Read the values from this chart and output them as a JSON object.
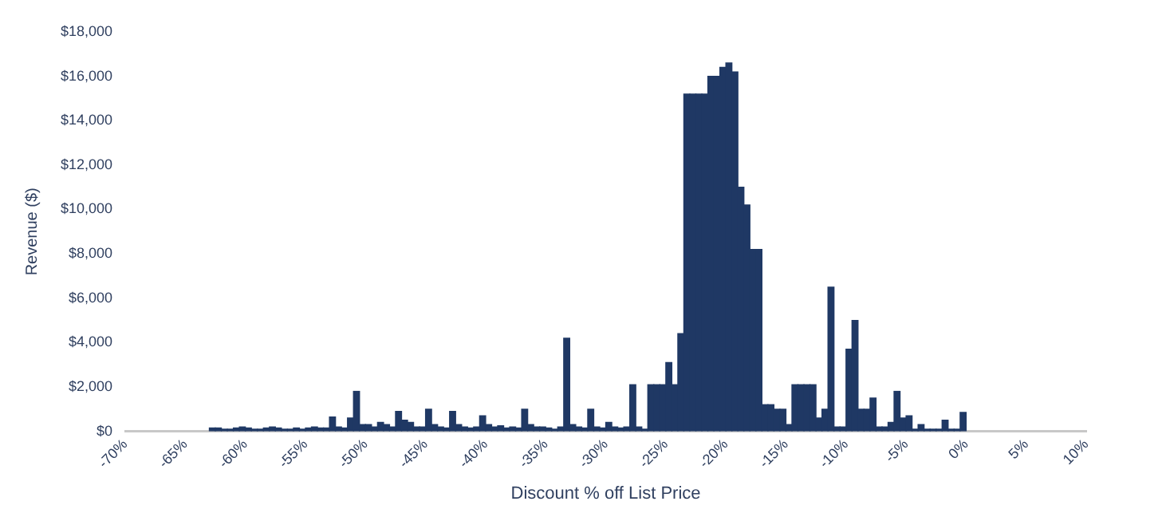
{
  "chart_data": {
    "type": "histogram",
    "xlabel": "Discount % off List Price",
    "ylabel": "Revenue ($)",
    "color": "#1f3864",
    "bins": [
      -63,
      -62.5,
      -62,
      -61.5,
      -61,
      -60.5,
      -60,
      -59.5,
      -59,
      -58.5,
      -58,
      -57.5,
      -57,
      -56.5,
      -56,
      -55.5,
      -55,
      -54.5,
      -54,
      -53.5,
      -53,
      -52.5,
      -52,
      -51.5,
      -51,
      -50.5,
      -50,
      -49.5,
      -49,
      -48.5,
      -48,
      -47.5,
      -47,
      -46.5,
      -46,
      -45.5,
      -45,
      -44.5,
      -44,
      -43.5,
      -43,
      -42.5,
      -42,
      -41.5,
      -41,
      -40.5,
      -40,
      -39.5,
      -39,
      -38.5,
      -38,
      -37.5,
      -37,
      -36.5,
      -36,
      -35.5,
      -35,
      -34.5,
      -34,
      -33.5,
      -33,
      -32.5,
      -32,
      -31.5,
      -31,
      -30.5,
      -30,
      -29.5,
      -29,
      -28.5,
      -28,
      -27.5,
      -27,
      -26.5,
      -26,
      -25.5,
      -25,
      -24.5,
      -24,
      -23.5,
      -23,
      -22.5,
      -22,
      -21.5,
      -21,
      -20.5,
      -20,
      -19.5,
      -19,
      -18.5,
      -18,
      -17.5,
      -17,
      -16.5,
      -16,
      -15.5,
      -15,
      -14.5,
      -14,
      -13.5,
      -13,
      -12.5,
      -12,
      -11.5,
      -11,
      -10.5,
      -10,
      -9.5,
      -9,
      -8.5,
      -8,
      -7.5,
      -7,
      -6.5,
      -6,
      -5.5,
      -5,
      -4.5,
      -4,
      -3.5,
      -3,
      -2.5,
      -2,
      -1.5,
      -1,
      -0.5,
      0
    ],
    "values": [
      150,
      150,
      100,
      100,
      150,
      200,
      150,
      100,
      100,
      150,
      200,
      150,
      100,
      100,
      150,
      100,
      150,
      200,
      150,
      150,
      650,
      200,
      150,
      600,
      1800,
      300,
      300,
      200,
      400,
      300,
      200,
      900,
      500,
      400,
      200,
      200,
      1000,
      300,
      200,
      150,
      900,
      300,
      200,
      150,
      200,
      700,
      300,
      200,
      250,
      150,
      200,
      150,
      1000,
      300,
      200,
      200,
      150,
      100,
      200,
      4200,
      300,
      200,
      150,
      1000,
      200,
      150,
      400,
      200,
      150,
      200,
      2100,
      200,
      100,
      2100,
      2100,
      2100,
      3100,
      2100,
      4400,
      15200,
      15200,
      15200,
      15200,
      16000,
      16000,
      16400,
      16600,
      16200,
      11000,
      10200,
      8200,
      8200,
      1200,
      1200,
      1000,
      1000,
      300,
      2100,
      2100,
      2100,
      2100,
      600,
      1000,
      6500,
      200,
      200,
      3700,
      5000,
      1000,
      1000,
      1500,
      200,
      200,
      400,
      1800,
      600,
      700,
      100,
      300,
      100,
      100,
      100,
      500,
      100,
      100,
      850
    ],
    "xlim": [
      -70,
      10
    ],
    "xticks": [
      {
        "value": -70,
        "label": "-70%"
      },
      {
        "value": -65,
        "label": "-65%"
      },
      {
        "value": -60,
        "label": "-60%"
      },
      {
        "value": -55,
        "label": "-55%"
      },
      {
        "value": -50,
        "label": "-50%"
      },
      {
        "value": -45,
        "label": "-45%"
      },
      {
        "value": -40,
        "label": "-40%"
      },
      {
        "value": -35,
        "label": "-35%"
      },
      {
        "value": -30,
        "label": "-30%"
      },
      {
        "value": -25,
        "label": "-25%"
      },
      {
        "value": -20,
        "label": "-20%"
      },
      {
        "value": -15,
        "label": "-15%"
      },
      {
        "value": -10,
        "label": "-10%"
      },
      {
        "value": -5,
        "label": "-5%"
      },
      {
        "value": 0,
        "label": "0%"
      },
      {
        "value": 5,
        "label": "5%"
      },
      {
        "value": 10,
        "label": "10%"
      }
    ],
    "ylim": [
      0,
      18000
    ],
    "yticks": [
      {
        "value": 0,
        "label": "$0"
      },
      {
        "value": 2000,
        "label": "$2,000"
      },
      {
        "value": 4000,
        "label": "$4,000"
      },
      {
        "value": 6000,
        "label": "$6,000"
      },
      {
        "value": 8000,
        "label": "$8,000"
      },
      {
        "value": 10000,
        "label": "$10,000"
      },
      {
        "value": 12000,
        "label": "$12,000"
      },
      {
        "value": 14000,
        "label": "$14,000"
      },
      {
        "value": 16000,
        "label": "$16,000"
      },
      {
        "value": 18000,
        "label": "$18,000"
      }
    ],
    "grid": false,
    "legend": false
  }
}
